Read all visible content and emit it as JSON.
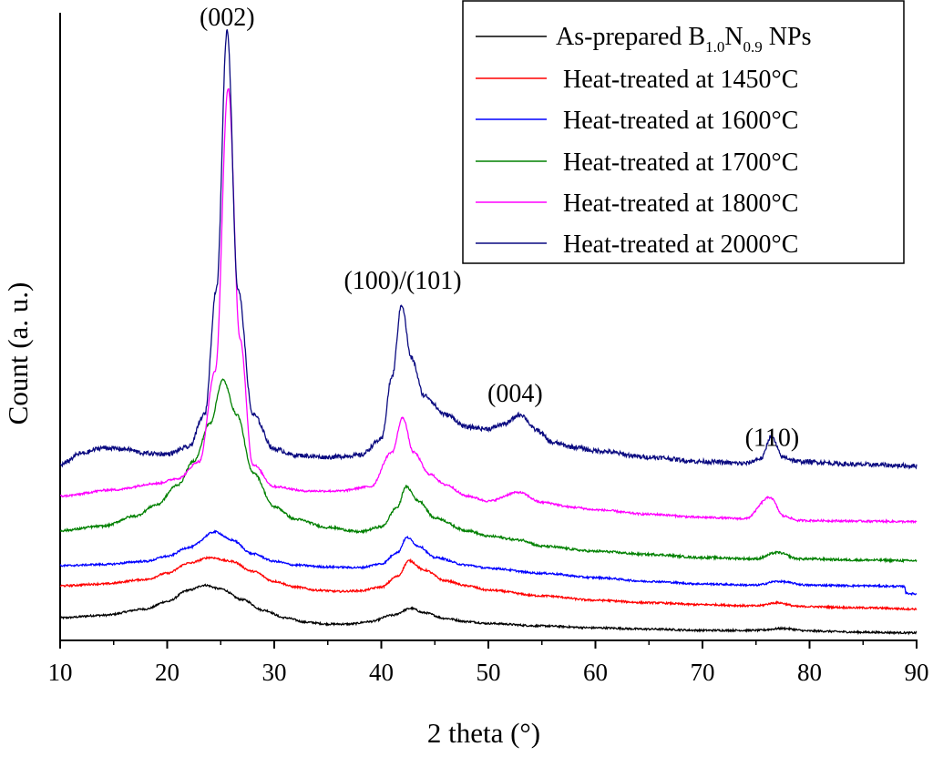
{
  "chart_data": {
    "type": "line",
    "title": "",
    "xlabel": "2 theta (°)",
    "ylabel": "Count (a. u.)",
    "xlim": [
      10,
      90
    ],
    "ylim": [
      0,
      1
    ],
    "x_ticks": [
      10,
      20,
      30,
      40,
      50,
      60,
      70,
      80,
      90
    ],
    "x_tick_labels": [
      "10",
      "20",
      "30",
      "40",
      "50",
      "60",
      "70",
      "80",
      "90"
    ],
    "y_ticks_shown": false,
    "grid": false,
    "legend_position": "top-right",
    "annotations": [
      {
        "text": "(002)",
        "x": 25.6,
        "y": 0.98
      },
      {
        "text": "(100)/(101)",
        "x": 42.0,
        "y": 0.56
      },
      {
        "text": "(004)",
        "x": 52.5,
        "y": 0.38
      },
      {
        "text": "(110)",
        "x": 76.5,
        "y": 0.31
      }
    ],
    "series": [
      {
        "name": "As-prepared B1.0N0.9 NPs",
        "legend": {
          "prefix": "As-prepared B",
          "sub1": "1.0",
          "mid": "N",
          "sub2": "0.9",
          "suffix": " NPs"
        },
        "color": "#000000",
        "noise": 0.0015,
        "x": [
          10,
          14,
          18,
          20,
          22,
          23.5,
          25,
          27,
          29,
          31,
          33,
          35,
          37,
          39,
          41,
          42.8,
          44,
          46,
          48,
          50,
          55,
          60,
          65,
          70,
          75,
          77.5,
          80,
          85,
          90
        ],
        "y": [
          0.036,
          0.04,
          0.05,
          0.062,
          0.08,
          0.088,
          0.082,
          0.065,
          0.048,
          0.036,
          0.029,
          0.026,
          0.026,
          0.03,
          0.04,
          0.051,
          0.044,
          0.035,
          0.03,
          0.027,
          0.023,
          0.02,
          0.018,
          0.016,
          0.016,
          0.019,
          0.015,
          0.013,
          0.012
        ]
      },
      {
        "name": "Heat-treated at 1450°C",
        "color": "#ff0000",
        "noise": 0.0015,
        "x": [
          10,
          14,
          18,
          20,
          22,
          24,
          26,
          28,
          30,
          32,
          34,
          36,
          38,
          40,
          41.5,
          42.6,
          44,
          46,
          48,
          50,
          55,
          60,
          65,
          70,
          75,
          77,
          79,
          85,
          90
        ],
        "y": [
          0.087,
          0.09,
          0.097,
          0.107,
          0.123,
          0.132,
          0.126,
          0.11,
          0.094,
          0.085,
          0.08,
          0.078,
          0.079,
          0.085,
          0.102,
          0.127,
          0.112,
          0.095,
          0.087,
          0.08,
          0.071,
          0.064,
          0.06,
          0.057,
          0.055,
          0.06,
          0.054,
          0.052,
          0.05
        ]
      },
      {
        "name": "Heat-treated at 1600°C",
        "color": "#0000ff",
        "noise": 0.0015,
        "x": [
          10,
          14,
          18,
          20,
          22,
          24.5,
          26,
          28,
          30,
          32,
          35,
          38,
          40,
          41.5,
          42.4,
          43.5,
          45,
          48,
          50,
          55,
          60,
          65,
          70,
          75,
          77,
          80,
          85,
          88.9,
          89.0,
          90
        ],
        "y": [
          0.119,
          0.121,
          0.126,
          0.134,
          0.148,
          0.173,
          0.16,
          0.138,
          0.126,
          0.12,
          0.117,
          0.116,
          0.122,
          0.14,
          0.164,
          0.15,
          0.132,
          0.12,
          0.115,
          0.107,
          0.1,
          0.094,
          0.09,
          0.088,
          0.094,
          0.088,
          0.087,
          0.086,
          0.075,
          0.074
        ]
      },
      {
        "name": "Heat-treated at 1700°C",
        "color": "#008000",
        "noise": 0.0018,
        "x": [
          10,
          14,
          17,
          19,
          21,
          22.5,
          24,
          25.2,
          26.5,
          28,
          30,
          32,
          35,
          38,
          40,
          41.5,
          42.3,
          43.5,
          45,
          48,
          50,
          53,
          55,
          60,
          65,
          70,
          75,
          77,
          79,
          85,
          90
        ],
        "y": [
          0.175,
          0.182,
          0.198,
          0.216,
          0.248,
          0.286,
          0.346,
          0.415,
          0.36,
          0.268,
          0.213,
          0.193,
          0.18,
          0.173,
          0.181,
          0.212,
          0.245,
          0.222,
          0.195,
          0.175,
          0.166,
          0.16,
          0.15,
          0.142,
          0.137,
          0.132,
          0.13,
          0.14,
          0.13,
          0.128,
          0.127
        ]
      },
      {
        "name": "Heat-treated at 1800°C",
        "color": "#ff00ff",
        "noise": 0.0016,
        "x": [
          10,
          15,
          19,
          21,
          23,
          24.5,
          25.7,
          26.8,
          28,
          30,
          33,
          36,
          39,
          41,
          42.0,
          43.0,
          44.5,
          46,
          48,
          50,
          52.8,
          55,
          58,
          60,
          65,
          70,
          74,
          76.3,
          77.6,
          79,
          85,
          90
        ],
        "y": [
          0.23,
          0.24,
          0.25,
          0.258,
          0.285,
          0.43,
          0.88,
          0.48,
          0.28,
          0.245,
          0.238,
          0.238,
          0.245,
          0.3,
          0.355,
          0.3,
          0.265,
          0.248,
          0.23,
          0.222,
          0.236,
          0.22,
          0.212,
          0.208,
          0.201,
          0.196,
          0.194,
          0.228,
          0.198,
          0.191,
          0.19,
          0.189
        ]
      },
      {
        "name": "Heat-treated at 2000°C",
        "color": "#0a0a80",
        "noise": 0.0035,
        "x": [
          10,
          12,
          14,
          16,
          18,
          20,
          22,
          23.5,
          24.6,
          25.6,
          26.6,
          28,
          30,
          32,
          35,
          38,
          40,
          41.0,
          41.9,
          42.8,
          44,
          46,
          48,
          50,
          51.5,
          53.0,
          54.5,
          56,
          58,
          60,
          65,
          70,
          74,
          75.5,
          76.4,
          77.5,
          79,
          85,
          90
        ],
        "y": [
          0.28,
          0.298,
          0.307,
          0.305,
          0.298,
          0.297,
          0.308,
          0.36,
          0.56,
          0.972,
          0.56,
          0.36,
          0.305,
          0.295,
          0.292,
          0.295,
          0.32,
          0.42,
          0.535,
          0.45,
          0.39,
          0.36,
          0.34,
          0.337,
          0.345,
          0.36,
          0.335,
          0.315,
          0.308,
          0.302,
          0.292,
          0.285,
          0.282,
          0.29,
          0.325,
          0.292,
          0.285,
          0.28,
          0.278
        ]
      }
    ]
  }
}
